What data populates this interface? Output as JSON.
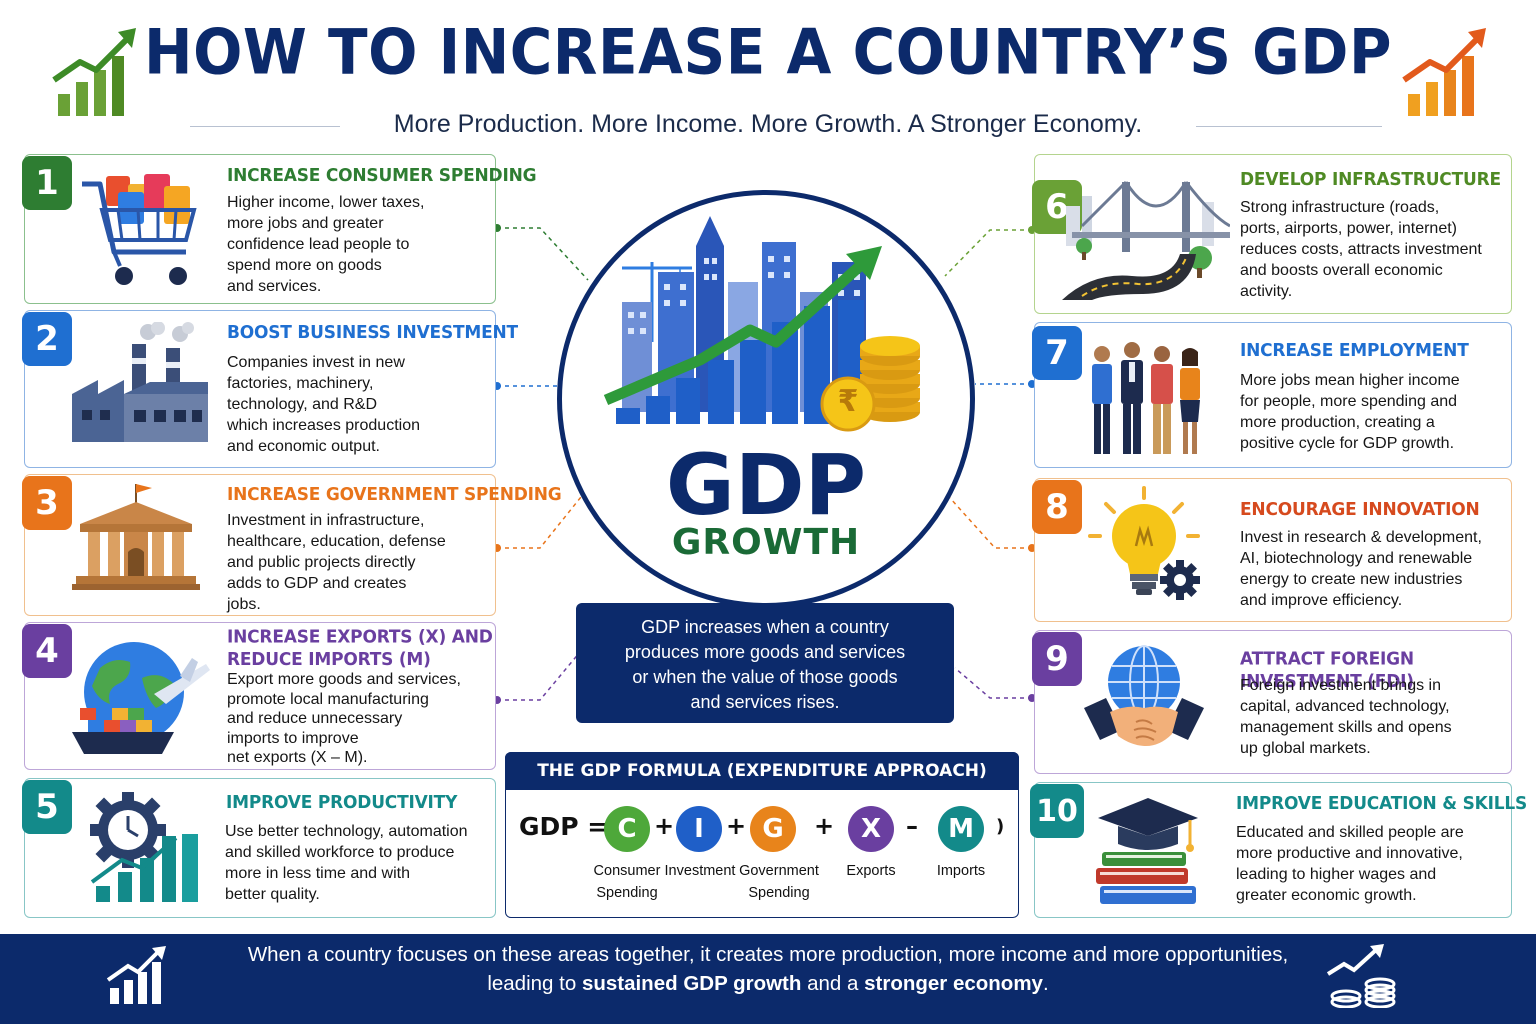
{
  "header": {
    "title": "HOW TO INCREASE A COUNTRY’S GDP",
    "subtitle": "More Production. More Income. More Growth. A Stronger Economy.",
    "left_icon": "bar-chart-up-arrow-icon",
    "right_icon": "bar-chart-up-arrow-icon"
  },
  "colors": {
    "navy": "#0c2a6b",
    "green": "#2e7d32",
    "blue": "#1f6fd1",
    "orange": "#e8741b",
    "purple": "#6a3fa0",
    "teal": "#138a8a",
    "lightgreen": "#6aa136",
    "red": "#d64a1e"
  },
  "left_cards": [
    {
      "number": "1",
      "title": "INCREASE CONSUMER SPENDING",
      "body": [
        "Higher income, lower taxes,",
        "more jobs and greater",
        "confidence lead people to",
        "spend more on goods",
        "and services."
      ],
      "icon": "shopping-cart-icon"
    },
    {
      "number": "2",
      "title": "BOOST BUSINESS INVESTMENT",
      "body": [
        "Companies invest in new",
        "factories, machinery,",
        "technology, and R&D",
        "which increases production",
        "and economic output."
      ],
      "icon": "factory-icon"
    },
    {
      "number": "3",
      "title": "INCREASE GOVERNMENT SPENDING",
      "body": [
        "Investment in infrastructure,",
        "healthcare, education, defense",
        "and public projects directly",
        "adds to GDP and creates",
        "jobs."
      ],
      "icon": "government-building-icon"
    },
    {
      "number": "4",
      "title": [
        "INCREASE EXPORTS (X) AND",
        "REDUCE IMPORTS (M)"
      ],
      "body": [
        "Export more goods and services,",
        "promote local manufacturing",
        "and reduce unnecessary",
        "imports to improve",
        "net exports (X – M)."
      ],
      "icon": "globe-ship-plane-icon"
    },
    {
      "number": "5",
      "title": "IMPROVE PRODUCTIVITY",
      "body": [
        "Use better technology, automation",
        "and skilled workforce to produce",
        "more in less time and with",
        "better quality."
      ],
      "icon": "gear-clock-chart-icon"
    }
  ],
  "right_cards": [
    {
      "number": "6",
      "title": "DEVELOP INFRASTRUCTURE",
      "body": [
        "Strong infrastructure (roads,",
        "ports, airports, power, internet)",
        "reduces costs, attracts investment",
        "and boosts overall economic",
        "activity."
      ],
      "icon": "bridge-road-icon"
    },
    {
      "number": "7",
      "title": "INCREASE EMPLOYMENT",
      "body": [
        "More jobs mean higher income",
        "for people, more spending and",
        "more production, creating a",
        "positive cycle for GDP growth."
      ],
      "icon": "workers-group-icon"
    },
    {
      "number": "8",
      "title": "ENCOURAGE INNOVATION",
      "body": [
        "Invest in research & development,",
        "AI, biotechnology and renewable",
        "energy to create new industries",
        "and improve efficiency."
      ],
      "icon": "lightbulb-gear-icon"
    },
    {
      "number": "9",
      "title": "ATTRACT FOREIGN INVESTMENT (FDI)",
      "body": [
        "Foreign investment brings in",
        "capital, advanced technology,",
        "management skills and opens",
        "up global markets."
      ],
      "icon": "globe-handshake-icon"
    },
    {
      "number": "10",
      "title": "IMPROVE EDUCATION & SKILLS",
      "body": [
        "Educated and skilled people are",
        "more productive and innovative,",
        "leading to higher wages and",
        "greater economic growth."
      ],
      "icon": "graduation-cap-books-icon"
    }
  ],
  "center": {
    "gdp": "GDP",
    "growth": "GROWTH",
    "illustration": "city-growth-chart-coins-icon",
    "coin_symbol": "₹",
    "info": [
      "GDP increases when a country",
      "produces more goods and services",
      "or when the value of those goods",
      "and services rises."
    ]
  },
  "formula": {
    "heading": "THE GDP FORMULA (EXPENDITURE APPROACH)",
    "lhs": "GDP =",
    "close": ")",
    "terms": [
      {
        "letter": "C",
        "label": [
          "Consumer",
          "Spending"
        ]
      },
      {
        "letter": "I",
        "label": [
          "Investment"
        ]
      },
      {
        "letter": "G",
        "label": [
          "Government",
          "Spending"
        ]
      },
      {
        "letter": "X",
        "label": [
          "Exports"
        ]
      },
      {
        "letter": "M",
        "label": [
          "Imports"
        ]
      }
    ],
    "ops": [
      "+",
      "+",
      "+",
      "–"
    ]
  },
  "footer": {
    "line1": "When a country focuses on these areas together, it creates more production, more income and more opportunities,",
    "line2_a": "leading to ",
    "line2_b": "sustained GDP growth",
    "line2_c": " and a ",
    "line2_d": "stronger economy",
    "line2_e": ".",
    "left_icon": "bar-chart-up-arrow-icon",
    "right_icon": "chart-coins-icon"
  }
}
